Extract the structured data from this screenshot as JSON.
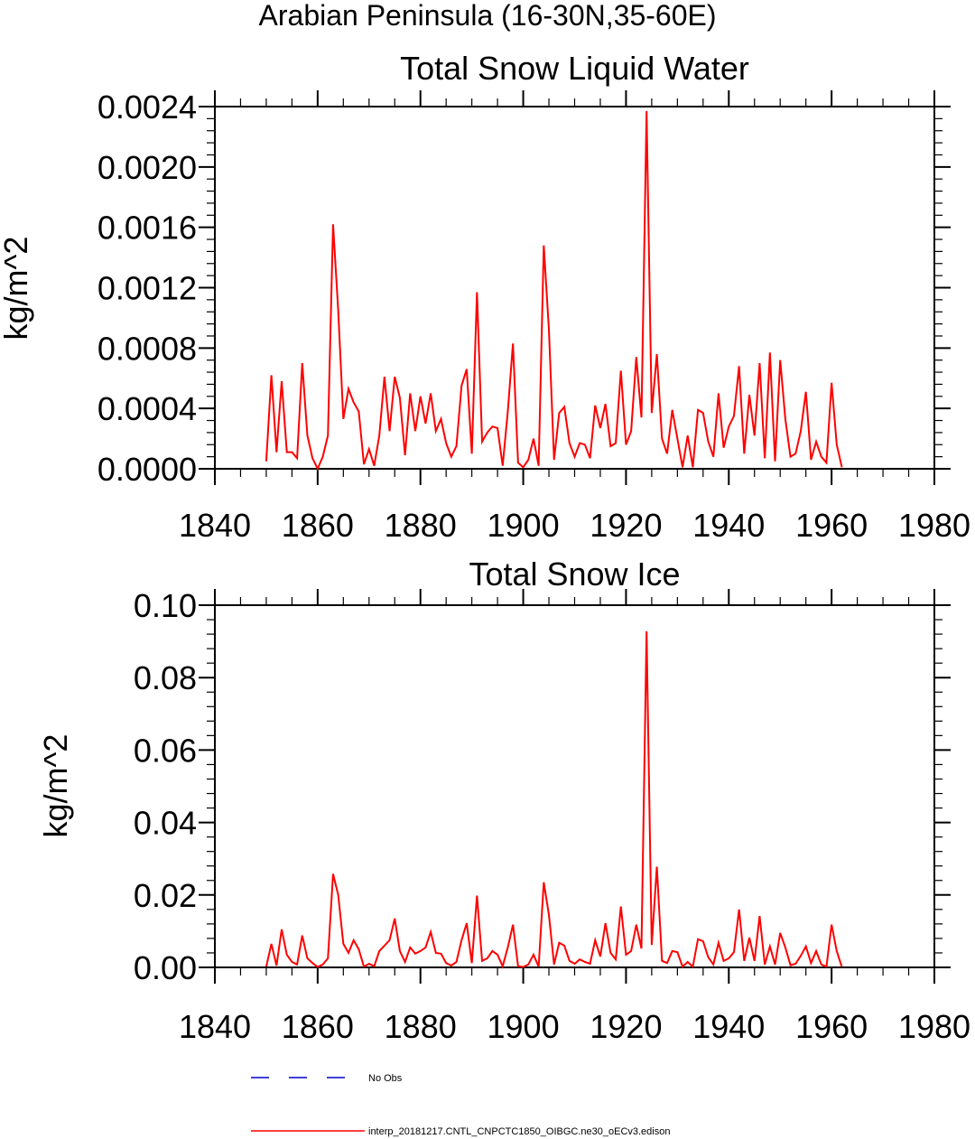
{
  "figure": {
    "main_title": "Arabian Peninsula (16-30N,35-60E)"
  },
  "legend": {
    "entries": [
      {
        "label": "No Obs",
        "color": "#0000cc",
        "style": "dashed"
      },
      {
        "label": "interp_20181217.CNTL_CNPCTC1850_OIBGC.ne30_oECv3.edison",
        "color": "#ff0000",
        "style": "solid"
      }
    ]
  },
  "chart_data": [
    {
      "type": "line",
      "title": "Total Snow Liquid Water",
      "xlabel": "",
      "ylabel": "kg/m^2",
      "xlim": [
        1840,
        1980
      ],
      "ylim": [
        0,
        0.0024
      ],
      "xticks": [
        1840,
        1860,
        1880,
        1900,
        1920,
        1940,
        1960,
        1980
      ],
      "xtick_labels": [
        "1840",
        "1860",
        "1880",
        "1900",
        "1920",
        "1940",
        "1960",
        "1980"
      ],
      "yticks": [
        0,
        0.0004,
        0.0008,
        0.0012,
        0.0016,
        0.002,
        0.0024
      ],
      "ytick_labels": [
        "0.0000",
        "0.0004",
        "0.0008",
        "0.0012",
        "0.0016",
        "0.0020",
        "0.0024"
      ],
      "grid": false,
      "series": [
        {
          "color": "#ff0000",
          "x": [
            1850,
            1851,
            1852,
            1853,
            1854,
            1855,
            1856,
            1857,
            1858,
            1859,
            1860,
            1861,
            1862,
            1863,
            1864,
            1865,
            1866,
            1867,
            1868,
            1869,
            1870,
            1871,
            1872,
            1873,
            1874,
            1875,
            1876,
            1877,
            1878,
            1879,
            1880,
            1881,
            1882,
            1883,
            1884,
            1885,
            1886,
            1887,
            1888,
            1889,
            1890,
            1891,
            1892,
            1893,
            1894,
            1895,
            1896,
            1897,
            1898,
            1899,
            1900,
            1901,
            1902,
            1903,
            1904,
            1905,
            1906,
            1907,
            1908,
            1909,
            1910,
            1911,
            1912,
            1913,
            1914,
            1915,
            1916,
            1917,
            1918,
            1919,
            1920,
            1921,
            1922,
            1923,
            1924,
            1925,
            1926,
            1927,
            1928,
            1929,
            1930,
            1931,
            1932,
            1933,
            1934,
            1935,
            1936,
            1937,
            1938,
            1939,
            1940,
            1941,
            1942,
            1943,
            1944,
            1945,
            1946,
            1947,
            1948,
            1949,
            1950,
            1951,
            1952,
            1953,
            1954,
            1955,
            1956,
            1957,
            1958,
            1959,
            1960,
            1961,
            1962
          ],
          "y": [
            5e-05,
            0.00062,
            0.00011,
            0.00058,
            0.00011,
            0.00011,
            7e-05,
            0.0007,
            0.00022,
            7e-05,
            0,
            8e-05,
            0.00022,
            0.00162,
            0.00105,
            0.00033,
            0.00053,
            0.00044,
            0.00038,
            3e-05,
            0.00013,
            2e-05,
            0.00022,
            0.00061,
            0.00025,
            0.00061,
            0.00047,
            9e-05,
            0.0005,
            0.00025,
            0.00048,
            0.0003,
            0.0005,
            0.00025,
            0.00033,
            0.00017,
            8e-05,
            0.00015,
            0.00055,
            0.00066,
            0.0001,
            0.00117,
            0.00018,
            0.00024,
            0.00028,
            0.00027,
            2e-05,
            0.00038,
            0.00083,
            4e-05,
            1e-05,
            6e-05,
            0.0002,
            2e-05,
            0.00148,
            0.00092,
            6e-05,
            0.00037,
            0.00041,
            0.00017,
            8e-05,
            0.00017,
            0.00016,
            7e-05,
            0.00042,
            0.00027,
            0.00043,
            0.00015,
            0.00017,
            0.00065,
            0.00016,
            0.00025,
            0.00074,
            0.00034,
            0.00237,
            0.00037,
            0.00076,
            0.0002,
            0.0001,
            0.00039,
            0.0002,
            1e-05,
            0.00022,
            1e-05,
            0.00039,
            0.00037,
            0.00018,
            8e-05,
            0.0005,
            0.00014,
            0.00028,
            0.00035,
            0.00068,
            0.0001,
            0.00049,
            0.00022,
            0.0007,
            7e-05,
            0.00077,
            5e-05,
            0.00072,
            0.00033,
            8e-05,
            0.0001,
            0.00025,
            0.00051,
            6e-05,
            0.00018,
            8e-05,
            4e-05,
            0.00057,
            0.00016,
            1e-05
          ]
        }
      ]
    },
    {
      "type": "line",
      "title": "Total Snow Ice",
      "xlabel": "",
      "ylabel": "kg/m^2",
      "xlim": [
        1840,
        1980
      ],
      "ylim": [
        0,
        0.1
      ],
      "xticks": [
        1840,
        1860,
        1880,
        1900,
        1920,
        1940,
        1960,
        1980
      ],
      "xtick_labels": [
        "1840",
        "1860",
        "1880",
        "1900",
        "1920",
        "1940",
        "1960",
        "1980"
      ],
      "yticks": [
        0,
        0.02,
        0.04,
        0.06,
        0.08,
        0.1
      ],
      "ytick_labels": [
        "0.00",
        "0.02",
        "0.04",
        "0.06",
        "0.08",
        "0.10"
      ],
      "grid": false,
      "series": [
        {
          "color": "#ff0000",
          "x": [
            1850,
            1851,
            1852,
            1853,
            1854,
            1855,
            1856,
            1857,
            1858,
            1859,
            1860,
            1861,
            1862,
            1863,
            1864,
            1865,
            1866,
            1867,
            1868,
            1869,
            1870,
            1871,
            1872,
            1873,
            1874,
            1875,
            1876,
            1877,
            1878,
            1879,
            1880,
            1881,
            1882,
            1883,
            1884,
            1885,
            1886,
            1887,
            1888,
            1889,
            1890,
            1891,
            1892,
            1893,
            1894,
            1895,
            1896,
            1897,
            1898,
            1899,
            1900,
            1901,
            1902,
            1903,
            1904,
            1905,
            1906,
            1907,
            1908,
            1909,
            1910,
            1911,
            1912,
            1913,
            1914,
            1915,
            1916,
            1917,
            1918,
            1919,
            1920,
            1921,
            1922,
            1923,
            1924,
            1925,
            1926,
            1927,
            1928,
            1929,
            1930,
            1931,
            1932,
            1933,
            1934,
            1935,
            1936,
            1937,
            1938,
            1939,
            1940,
            1941,
            1942,
            1943,
            1944,
            1945,
            1946,
            1947,
            1948,
            1949,
            1950,
            1951,
            1952,
            1953,
            1954,
            1955,
            1956,
            1957,
            1958,
            1959,
            1960,
            1961,
            1962
          ],
          "y": [
            0.0002,
            0.0065,
            0.0005,
            0.0105,
            0.0035,
            0.0015,
            0.0008,
            0.0088,
            0.0025,
            0.0012,
            0.0001,
            0.0008,
            0.0025,
            0.0258,
            0.02,
            0.0065,
            0.004,
            0.0075,
            0.005,
            0.0002,
            0.001,
            0.0003,
            0.0045,
            0.006,
            0.0075,
            0.0135,
            0.0045,
            0.0015,
            0.0055,
            0.0038,
            0.0045,
            0.0055,
            0.0098,
            0.004,
            0.0038,
            0.0012,
            0.0005,
            0.0015,
            0.0075,
            0.0122,
            0.0012,
            0.0198,
            0.0018,
            0.0025,
            0.0045,
            0.0035,
            0.0003,
            0.0055,
            0.0118,
            0.0003,
            0.0001,
            0.0008,
            0.0035,
            0.0002,
            0.0235,
            0.0145,
            0.0008,
            0.0068,
            0.006,
            0.0018,
            0.001,
            0.0022,
            0.0015,
            0.001,
            0.0075,
            0.003,
            0.0122,
            0.004,
            0.0022,
            0.0168,
            0.0035,
            0.0045,
            0.0118,
            0.0052,
            0.0928,
            0.0062,
            0.0278,
            0.0018,
            0.0012,
            0.0045,
            0.0042,
            0.0002,
            0.0015,
            0.0002,
            0.0078,
            0.0072,
            0.0028,
            0.0008,
            0.0068,
            0.0018,
            0.0025,
            0.0042,
            0.016,
            0.0018,
            0.0082,
            0.0018,
            0.0142,
            0.0008,
            0.0058,
            0.0008,
            0.0095,
            0.0055,
            0.0006,
            0.001,
            0.0032,
            0.0058,
            0.0012,
            0.0045,
            0.0008,
            0.0002,
            0.0118,
            0.0045,
            0.0001
          ]
        }
      ]
    }
  ]
}
